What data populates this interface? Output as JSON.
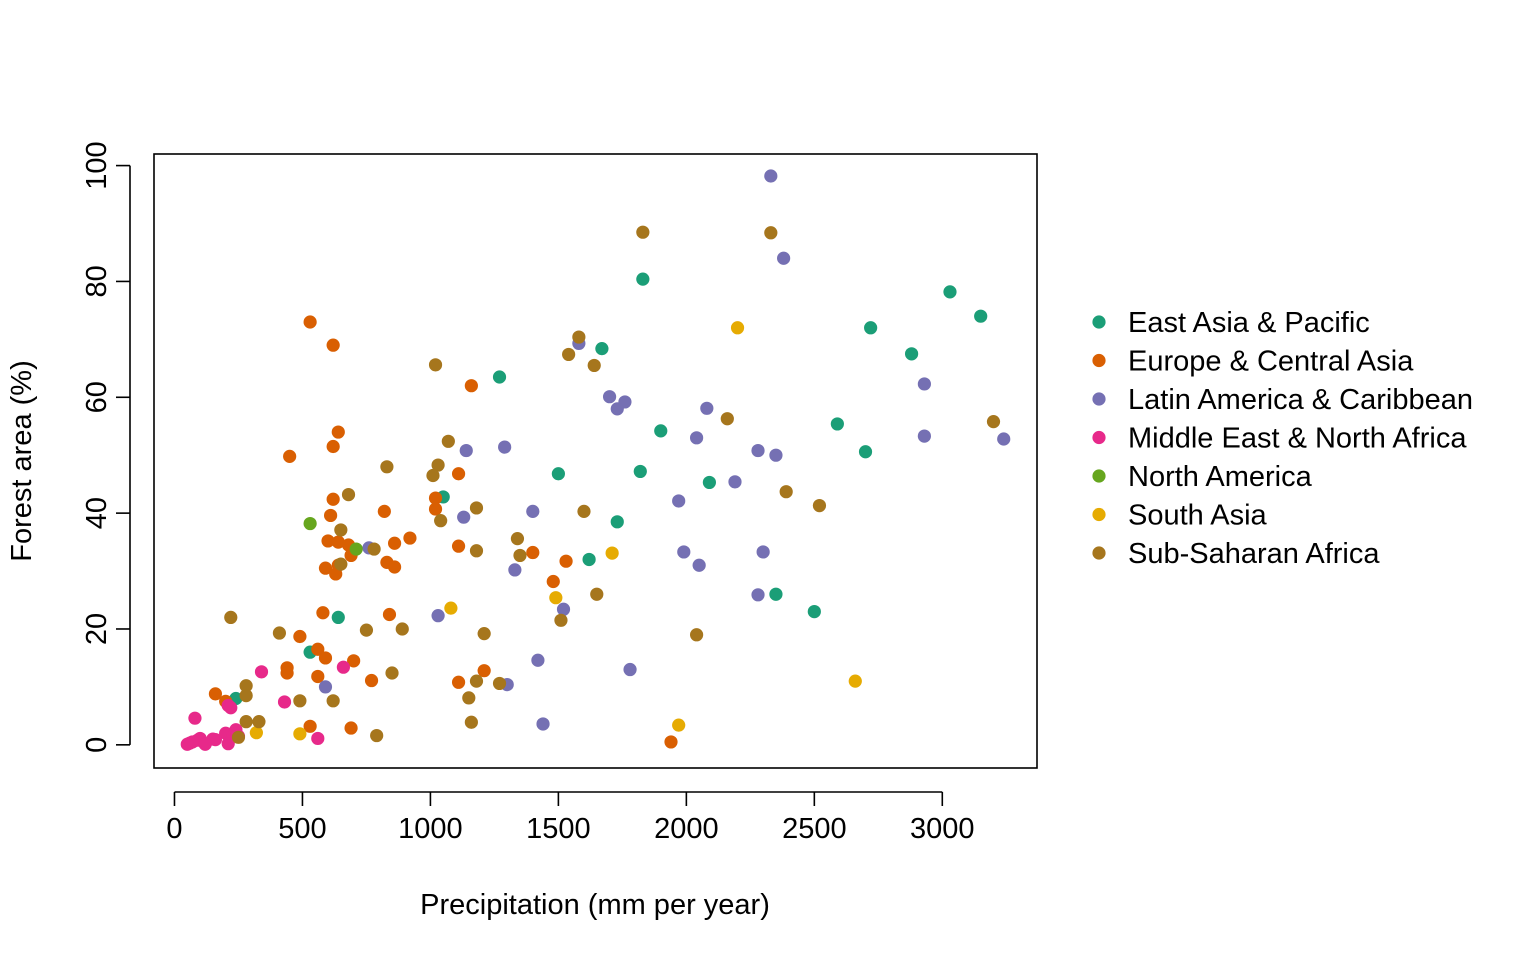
{
  "chart_data": {
    "type": "scatter",
    "title": "",
    "xlabel": "Precipitation (mm per year)",
    "ylabel": "Forest area (%)",
    "xlim": [
      -80,
      3370
    ],
    "ylim": [
      -4,
      102
    ],
    "xticks": [
      0,
      500,
      1000,
      1500,
      2000,
      2500,
      3000
    ],
    "yticks": [
      0,
      20,
      40,
      60,
      80,
      100
    ],
    "grid": false,
    "legend_position": "right",
    "series": [
      {
        "name": "East Asia & Pacific",
        "color": "#1B9E77",
        "points": [
          [
            3150,
            74
          ],
          [
            3030,
            78.2
          ],
          [
            2720,
            72
          ],
          [
            2880,
            67.5
          ],
          [
            2590,
            55.4
          ],
          [
            2700,
            50.6
          ],
          [
            1830,
            80.4
          ],
          [
            1670,
            68.4
          ],
          [
            1270,
            63.5
          ],
          [
            1900,
            54.2
          ],
          [
            1820,
            47.2
          ],
          [
            2090,
            45.3
          ],
          [
            1500,
            46.8
          ],
          [
            1050,
            42.8
          ],
          [
            1730,
            38.5
          ],
          [
            1620,
            32
          ],
          [
            2350,
            26
          ],
          [
            2500,
            23
          ],
          [
            640,
            22
          ],
          [
            530,
            16
          ],
          [
            240,
            8
          ]
        ]
      },
      {
        "name": "Europe & Central Asia",
        "color": "#D95F02",
        "points": [
          [
            530,
            73
          ],
          [
            620,
            69
          ],
          [
            1160,
            62
          ],
          [
            640,
            54
          ],
          [
            620,
            51.5
          ],
          [
            450,
            49.8
          ],
          [
            1110,
            46.8
          ],
          [
            1020,
            42.6
          ],
          [
            620,
            42.4
          ],
          [
            1020,
            40.7
          ],
          [
            820,
            40.3
          ],
          [
            610,
            39.6
          ],
          [
            920,
            35.7
          ],
          [
            600,
            35.2
          ],
          [
            640,
            35
          ],
          [
            860,
            34.8
          ],
          [
            680,
            34.5
          ],
          [
            1110,
            34.3
          ],
          [
            1400,
            33.2
          ],
          [
            690,
            32.7
          ],
          [
            1530,
            31.7
          ],
          [
            830,
            31.5
          ],
          [
            640,
            31
          ],
          [
            860,
            30.7
          ],
          [
            590,
            30.5
          ],
          [
            630,
            29.5
          ],
          [
            1480,
            28.2
          ],
          [
            580,
            22.8
          ],
          [
            840,
            22.5
          ],
          [
            490,
            18.7
          ],
          [
            560,
            16.5
          ],
          [
            590,
            15
          ],
          [
            700,
            14.5
          ],
          [
            440,
            13.3
          ],
          [
            1210,
            12.8
          ],
          [
            440,
            12.4
          ],
          [
            560,
            11.8
          ],
          [
            770,
            11.1
          ],
          [
            1110,
            10.8
          ],
          [
            160,
            8.8
          ],
          [
            200,
            7.5
          ],
          [
            530,
            3.2
          ],
          [
            690,
            2.9
          ],
          [
            1940,
            0.5
          ]
        ]
      },
      {
        "name": "Latin America & Caribbean",
        "color": "#7570B3",
        "points": [
          [
            2330,
            98.2
          ],
          [
            2380,
            84
          ],
          [
            1580,
            69.3
          ],
          [
            2930,
            62.3
          ],
          [
            1700,
            60.1
          ],
          [
            1760,
            59.2
          ],
          [
            1730,
            58
          ],
          [
            2080,
            58.1
          ],
          [
            2930,
            53.3
          ],
          [
            2040,
            53
          ],
          [
            3240,
            52.8
          ],
          [
            1140,
            50.8
          ],
          [
            1290,
            51.4
          ],
          [
            2280,
            50.8
          ],
          [
            2350,
            50
          ],
          [
            2190,
            45.4
          ],
          [
            1970,
            42.1
          ],
          [
            1400,
            40.3
          ],
          [
            1130,
            39.3
          ],
          [
            760,
            34
          ],
          [
            1990,
            33.3
          ],
          [
            2300,
            33.3
          ],
          [
            2050,
            31
          ],
          [
            1330,
            30.2
          ],
          [
            1520,
            23.4
          ],
          [
            1030,
            22.3
          ],
          [
            2280,
            25.9
          ],
          [
            1420,
            14.6
          ],
          [
            1780,
            13
          ],
          [
            590,
            10
          ],
          [
            1300,
            10.4
          ],
          [
            1440,
            3.6
          ]
        ]
      },
      {
        "name": "Middle East & North Africa",
        "color": "#E7298A",
        "points": [
          [
            340,
            12.6
          ],
          [
            660,
            13.4
          ],
          [
            430,
            7.4
          ],
          [
            210,
            6.8
          ],
          [
            220,
            6.4
          ],
          [
            80,
            4.6
          ],
          [
            240,
            2.6
          ],
          [
            200,
            2
          ],
          [
            230,
            1.6
          ],
          [
            250,
            1.5
          ],
          [
            560,
            1.1
          ],
          [
            100,
            1.1
          ],
          [
            150,
            1
          ],
          [
            160,
            0.9
          ],
          [
            90,
            0.8
          ],
          [
            70,
            0.5
          ],
          [
            60,
            0.3
          ],
          [
            50,
            0.1
          ],
          [
            120,
            0.1
          ],
          [
            210,
            0.2
          ]
        ]
      },
      {
        "name": "North America",
        "color": "#66A61E",
        "points": [
          [
            530,
            38.2
          ],
          [
            710,
            33.8
          ]
        ]
      },
      {
        "name": "South Asia",
        "color": "#E6AB02",
        "points": [
          [
            2200,
            72
          ],
          [
            1710,
            33.1
          ],
          [
            1080,
            23.6
          ],
          [
            1490,
            25.4
          ],
          [
            2660,
            11
          ],
          [
            1970,
            3.4
          ],
          [
            320,
            2.1
          ],
          [
            490,
            1.9
          ]
        ]
      },
      {
        "name": "Sub-Saharan Africa",
        "color": "#A6761D",
        "points": [
          [
            1830,
            88.5
          ],
          [
            2330,
            88.4
          ],
          [
            1580,
            70.4
          ],
          [
            1540,
            67.4
          ],
          [
            1020,
            65.6
          ],
          [
            1640,
            65.5
          ],
          [
            3200,
            55.8
          ],
          [
            2160,
            56.3
          ],
          [
            1070,
            52.4
          ],
          [
            1030,
            48.3
          ],
          [
            830,
            48
          ],
          [
            1010,
            46.5
          ],
          [
            2390,
            43.7
          ],
          [
            680,
            43.2
          ],
          [
            2520,
            41.3
          ],
          [
            1180,
            40.9
          ],
          [
            1600,
            40.3
          ],
          [
            1040,
            38.7
          ],
          [
            650,
            37.1
          ],
          [
            1340,
            35.6
          ],
          [
            780,
            33.8
          ],
          [
            1180,
            33.5
          ],
          [
            1350,
            32.7
          ],
          [
            650,
            31.2
          ],
          [
            220,
            22
          ],
          [
            1510,
            21.5
          ],
          [
            1650,
            26
          ],
          [
            750,
            19.8
          ],
          [
            890,
            20
          ],
          [
            410,
            19.3
          ],
          [
            1210,
            19.2
          ],
          [
            2040,
            19
          ],
          [
            850,
            12.4
          ],
          [
            1180,
            11
          ],
          [
            1270,
            10.6
          ],
          [
            280,
            10.2
          ],
          [
            280,
            8.5
          ],
          [
            1150,
            8.1
          ],
          [
            490,
            7.6
          ],
          [
            620,
            7.6
          ],
          [
            330,
            4
          ],
          [
            280,
            4
          ],
          [
            1160,
            3.9
          ],
          [
            790,
            1.6
          ],
          [
            250,
            1.3
          ]
        ]
      }
    ]
  }
}
